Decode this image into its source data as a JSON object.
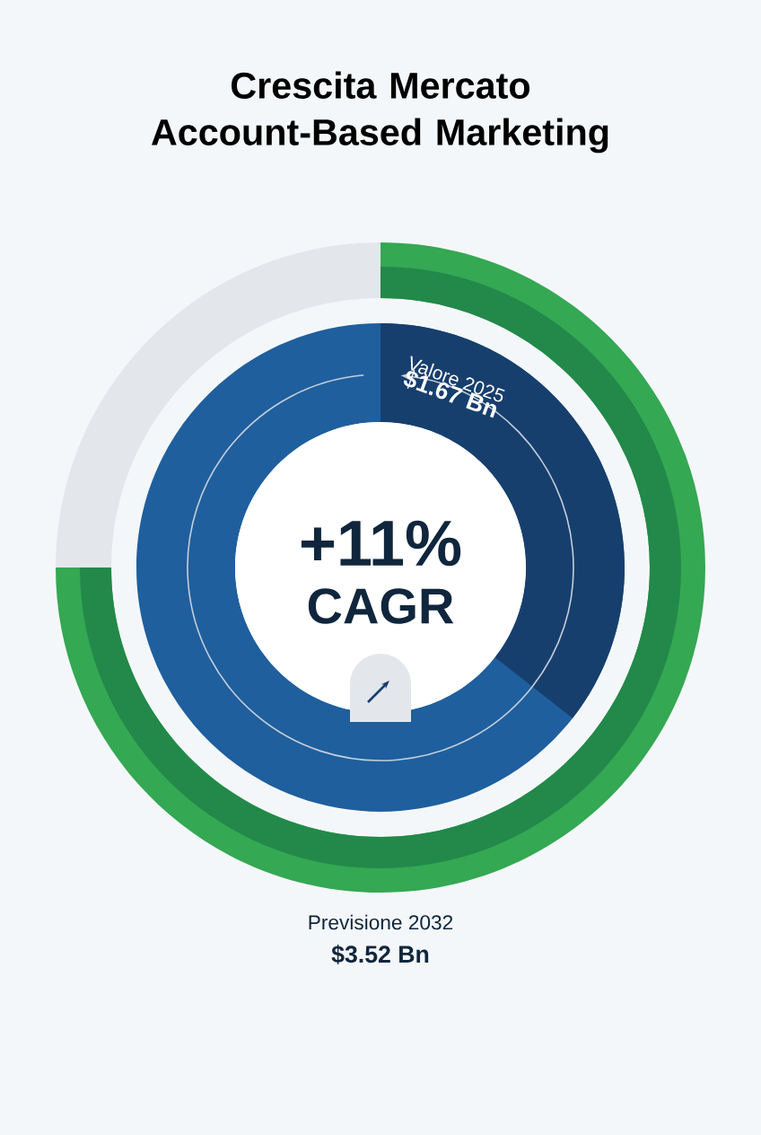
{
  "chart_data": {
    "type": "other",
    "title": "Crescita Mercato Account-Based Marketing",
    "categories": [
      "Valore 2025",
      "Previsione 2032"
    ],
    "values": [
      1.67,
      3.52
    ],
    "value_labels": [
      "$1.67 Bn",
      "$3.52 Bn"
    ],
    "colors": [
      "#173f6e",
      "#34a853"
    ],
    "annotations": [
      "+11%",
      "CAGR"
    ]
  }
}
